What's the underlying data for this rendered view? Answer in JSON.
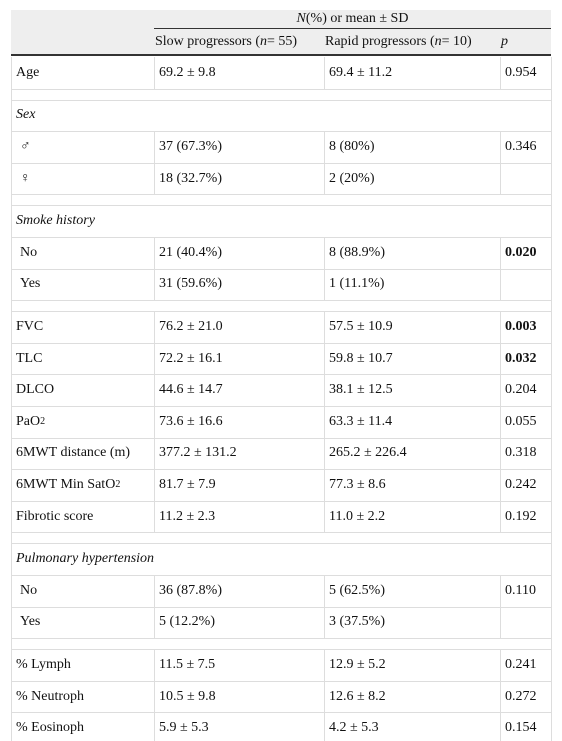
{
  "header": {
    "group": [
      {
        "text": "N",
        "italic": true
      },
      {
        "text": " (%) or mean ± SD"
      }
    ],
    "columns": [
      [
        {
          "text": "Slow progressors ("
        },
        {
          "text": "n",
          "italic": true
        },
        {
          "text": " = 55)"
        }
      ],
      [
        {
          "text": "Rapid progressors ("
        },
        {
          "text": "n",
          "italic": true
        },
        {
          "text": " = 10)"
        }
      ],
      [
        {
          "text": "p",
          "italic": true
        }
      ]
    ]
  },
  "groups": [
    {
      "rows": [
        {
          "label": "Age",
          "slow": "69.2 ± 9.8",
          "rapid": "69.4 ± 11.2",
          "p": "0.954"
        }
      ]
    },
    {
      "title": "Sex",
      "rows": [
        {
          "label": "♂",
          "slow": "37 (67.3%)",
          "rapid": "8 (80%)",
          "p": "0.346"
        },
        {
          "label": "♀",
          "slow": "18 (32.7%)",
          "rapid": "2 (20%)"
        }
      ]
    },
    {
      "title": "Smoke history",
      "rows": [
        {
          "label": "No",
          "slow": "21 (40.4%)",
          "rapid": "8 (88.9%)",
          "p": "0.020",
          "p_bold": true
        },
        {
          "label": "Yes",
          "slow": "31 (59.6%)",
          "rapid": "1 (11.1%)"
        }
      ]
    },
    {
      "rows": [
        {
          "label": "FVC",
          "slow": "76.2 ± 21.0",
          "rapid": "57.5 ± 10.9",
          "p": "0.003",
          "p_bold": true
        },
        {
          "label": "TLC",
          "slow": "72.2 ± 16.1",
          "rapid": "59.8 ± 10.7",
          "p": "0.032",
          "p_bold": true
        },
        {
          "label": "DLCO",
          "slow": "44.6 ± 14.7",
          "rapid": "38.1 ± 12.5",
          "p": "0.204"
        },
        {
          "label": [
            {
              "text": "PaO"
            },
            {
              "text": "2",
              "sub": true
            }
          ],
          "slow": "73.6 ± 16.6",
          "rapid": "63.3 ± 11.4",
          "p": "0.055"
        },
        {
          "label": "6MWT distance (m)",
          "slow": "377.2 ± 131.2",
          "rapid": "265.2 ± 226.4",
          "p": "0.318"
        },
        {
          "label": [
            {
              "text": "6MWT Min SatO"
            },
            {
              "text": "2",
              "sub": true
            }
          ],
          "slow": "81.7 ± 7.9",
          "rapid": "77.3 ± 8.6",
          "p": "0.242"
        },
        {
          "label": "Fibrotic score",
          "slow": "11.2 ± 2.3",
          "rapid": "11.0 ± 2.2",
          "p": "0.192"
        }
      ]
    },
    {
      "title": "Pulmonary hypertension",
      "rows": [
        {
          "label": "No",
          "slow": "36 (87.8%)",
          "rapid": "5 (62.5%)",
          "p": "0.110"
        },
        {
          "label": "Yes",
          "slow": "5 (12.2%)",
          "rapid": "3 (37.5%)"
        }
      ]
    },
    {
      "rows": [
        {
          "label": "% Lymph",
          "slow": "11.5 ± 7.5",
          "rapid": "12.9 ± 5.2",
          "p": "0.241"
        },
        {
          "label": "% Neutroph",
          "slow": "10.5 ± 9.8",
          "rapid": "12.6 ± 8.2",
          "p": "0.272"
        },
        {
          "label": "% Eosinoph",
          "slow": "5.9 ± 5.3",
          "rapid": "4.2 ± 5.3",
          "p": "0.154"
        }
      ]
    }
  ]
}
